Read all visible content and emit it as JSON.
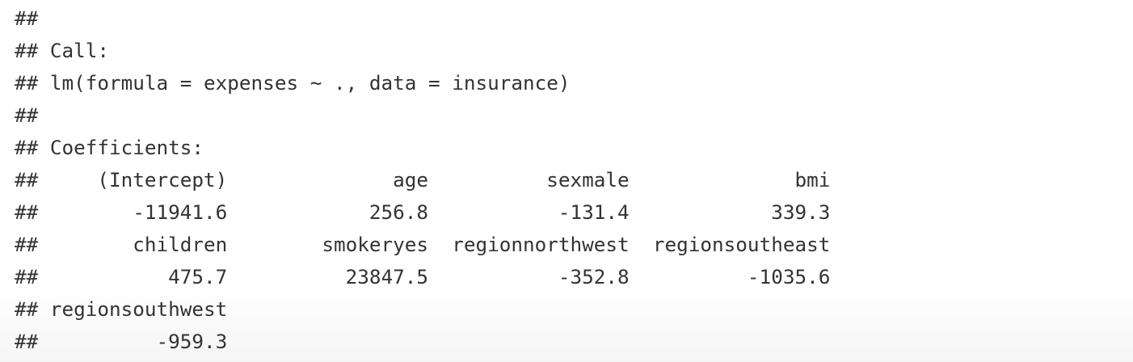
{
  "console": {
    "lines": [
      "##",
      "## Call:",
      "## lm(formula = expenses ~ ., data = insurance)",
      "##",
      "## Coefficients:",
      "##     (Intercept)              age          sexmale              bmi",
      "##        -11941.6            256.8           -131.4            339.3",
      "##        children        smokeryes  regionnorthwest  regionsoutheast",
      "##           475.7          23847.5           -352.8          -1035.6",
      "## regionsouthwest",
      "##          -959.3"
    ]
  }
}
